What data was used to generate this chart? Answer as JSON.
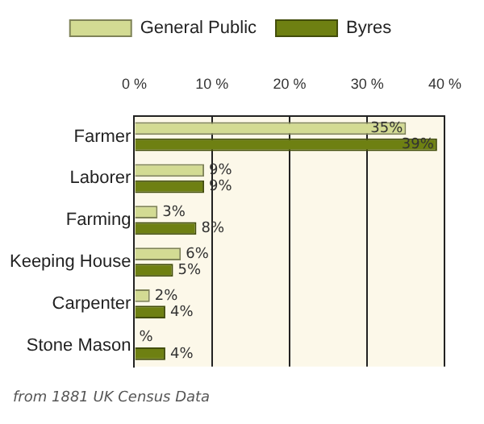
{
  "chart_data": {
    "type": "bar",
    "orientation": "horizontal",
    "categories": [
      "Farmer",
      "Laborer",
      "Farming",
      "Keeping House",
      "Carpenter",
      "Stone Mason"
    ],
    "series": [
      {
        "name": "General Public",
        "color": "#d3db93",
        "values": [
          35,
          9,
          3,
          6,
          2,
          0
        ],
        "value_labels": [
          "35%",
          "9%",
          "3%",
          "6%",
          "2%",
          "%"
        ]
      },
      {
        "name": "Byres",
        "color": "#6e8012",
        "values": [
          39,
          9,
          8,
          5,
          4,
          4
        ],
        "value_labels": [
          "39%",
          "9%",
          "8%",
          "5%",
          "4%",
          "4%"
        ]
      }
    ],
    "xlim": [
      0,
      40
    ],
    "xticks": [
      {
        "value": 0,
        "label": "0 %"
      },
      {
        "value": 10,
        "label": "10 %"
      },
      {
        "value": 20,
        "label": "20 %"
      },
      {
        "value": 30,
        "label": "30 %"
      },
      {
        "value": 40,
        "label": "40 %"
      }
    ],
    "grid": "x",
    "legend": "top",
    "annotations": [
      "from 1881 UK Census Data"
    ]
  }
}
